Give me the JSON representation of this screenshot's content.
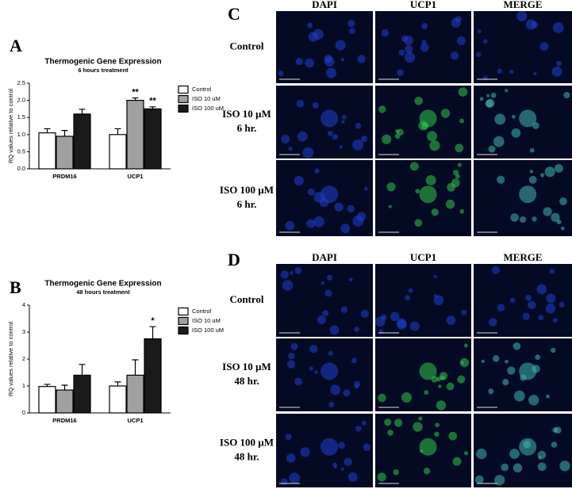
{
  "chart_data": [
    {
      "type": "bar",
      "panel_label": "A",
      "title": "Thermogenic Gene Expression",
      "subtitle": "6 hours treatment",
      "ylabel": "RQ values relative to control",
      "categories": [
        "PRDM16",
        "UCP1"
      ],
      "series": [
        {
          "name": "Control",
          "color": "#ffffff",
          "values": [
            1.05,
            1.0
          ],
          "errors": [
            0.12,
            0.17
          ],
          "annotations": [
            null,
            null
          ]
        },
        {
          "name": "ISO 10 uM",
          "color": "#a0a0a0",
          "values": [
            0.95,
            2.0
          ],
          "errors": [
            0.17,
            0.07
          ],
          "annotations": [
            null,
            "**"
          ]
        },
        {
          "name": "ISO 100 uM",
          "color": "#1a1a1a",
          "values": [
            1.6,
            1.75
          ],
          "errors": [
            0.14,
            0.06
          ],
          "annotations": [
            null,
            "**"
          ]
        }
      ],
      "ylim": [
        0,
        2.5
      ],
      "yticks": [
        {
          "value": 0,
          "label": "0.0"
        },
        0.5,
        {
          "value": 1,
          "label": "1.0"
        },
        1.5,
        {
          "value": 2,
          "label": "2.0"
        },
        2.5
      ],
      "legend": "right"
    },
    {
      "type": "bar",
      "panel_label": "B",
      "title": "Thermogenic Gene Expression",
      "subtitle": "48 hours treatment",
      "ylabel": "RQ values relative to control",
      "categories": [
        "PRDM16",
        "UCP1"
      ],
      "series": [
        {
          "name": "Control",
          "color": "#ffffff",
          "values": [
            0.98,
            1.0
          ],
          "errors": [
            0.08,
            0.15
          ],
          "annotations": [
            null,
            null
          ]
        },
        {
          "name": "ISO 10 uM",
          "color": "#a0a0a0",
          "values": [
            0.85,
            1.4
          ],
          "errors": [
            0.18,
            0.57
          ],
          "annotations": [
            null,
            null
          ]
        },
        {
          "name": "ISO 100 uM",
          "color": "#1a1a1a",
          "values": [
            1.4,
            2.75
          ],
          "errors": [
            0.4,
            0.45
          ],
          "annotations": [
            null,
            "*"
          ]
        }
      ],
      "ylim": [
        0,
        4
      ],
      "yticks": [
        0,
        1,
        2,
        3,
        4
      ],
      "legend": "right"
    }
  ],
  "microscopy": [
    {
      "panel_label": "C",
      "columns": [
        "DAPI",
        "UCP1",
        "MERGE"
      ],
      "rows": [
        [
          "Control"
        ],
        [
          "ISO 10 µM",
          "6 hr."
        ],
        [
          "ISO 100 µM",
          "6 hr."
        ]
      ]
    },
    {
      "panel_label": "D",
      "columns": [
        "DAPI",
        "UCP1",
        "MERGE"
      ],
      "rows": [
        [
          "Control"
        ],
        [
          "ISO 10 µM",
          "48 hr."
        ],
        [
          "ISO 100 µM",
          "48 hr."
        ]
      ]
    }
  ]
}
